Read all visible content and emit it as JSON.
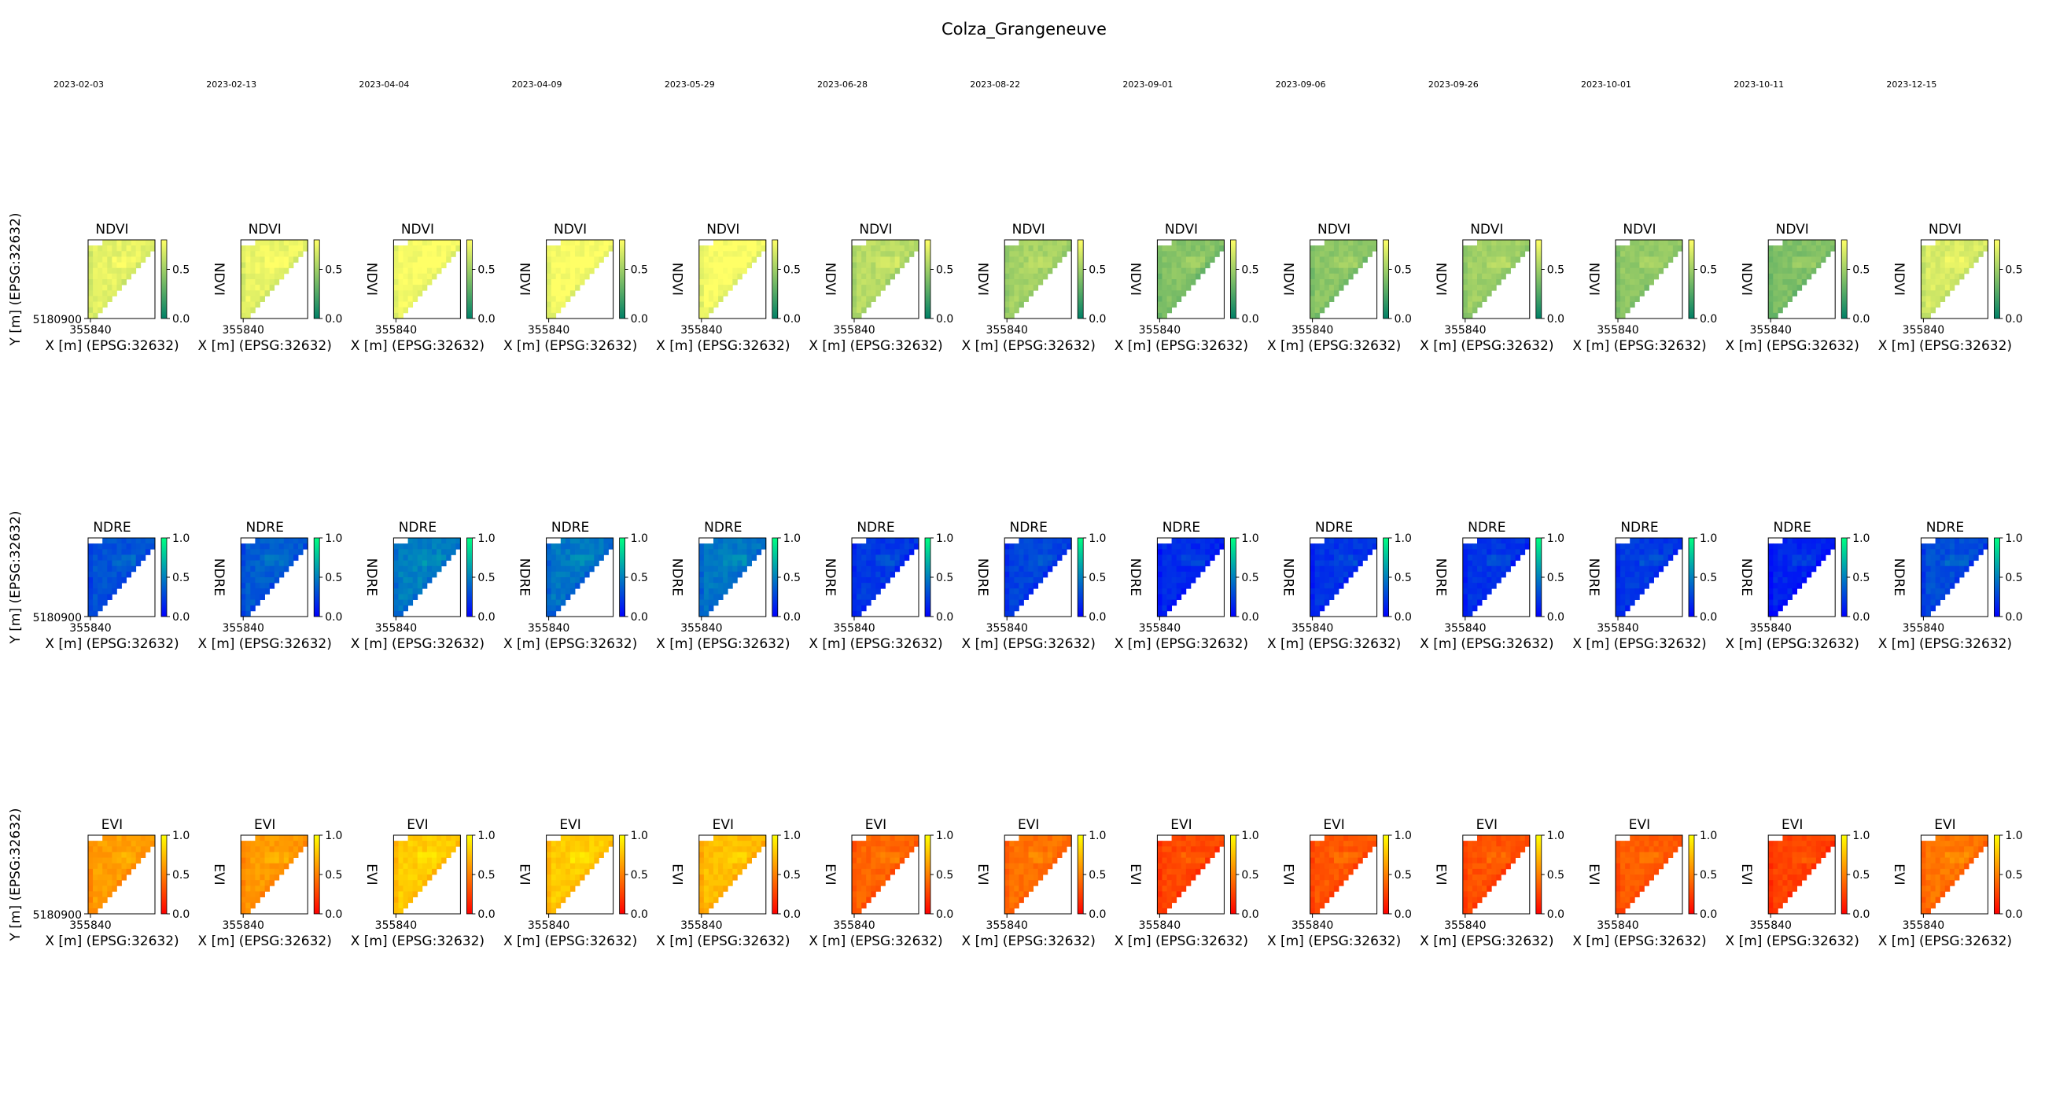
{
  "figure": {
    "title": "Colza_Grangeneuve",
    "dates": [
      "2023-02-03",
      "2023-02-13",
      "2023-04-04",
      "2023-04-09",
      "2023-05-29",
      "2023-06-28",
      "2023-08-22",
      "2023-09-01",
      "2023-09-06",
      "2023-09-26",
      "2023-10-01",
      "2023-10-11",
      "2023-12-15"
    ]
  },
  "chart_data": {
    "type": "heatmap",
    "title": "Colza_Grangeneuve",
    "xlabel": "X [m] (EPSG:32632)",
    "ylabel": "Y [m] (EPSG:32632)",
    "x_tick_label": "355840",
    "y_tick_label": "5180900",
    "columns": [
      "2023-02-03",
      "2023-02-13",
      "2023-04-04",
      "2023-04-09",
      "2023-05-29",
      "2023-06-28",
      "2023-08-22",
      "2023-09-01",
      "2023-09-06",
      "2023-09-26",
      "2023-10-01",
      "2023-10-11",
      "2023-12-15"
    ],
    "rows": [
      {
        "index": "NDVI",
        "colormap": "summer",
        "colormap_colors": [
          "#008066",
          "#ffff66"
        ],
        "clim": [
          0,
          0.8
        ],
        "colorbar_ticks": [
          "0.0",
          "0.5"
        ],
        "colorbar_label": "NDVI",
        "mean_values": [
          0.72,
          0.74,
          0.78,
          0.78,
          0.78,
          0.58,
          0.52,
          0.42,
          0.44,
          0.5,
          0.46,
          0.4,
          0.68
        ]
      },
      {
        "index": "NDRE",
        "colormap": "winter",
        "colormap_colors": [
          "#0000ff",
          "#00ff80"
        ],
        "clim": [
          0,
          1.0
        ],
        "colorbar_ticks": [
          "0.0",
          "0.5",
          "1.0"
        ],
        "colorbar_label": "NDRE",
        "mean_values": [
          0.32,
          0.36,
          0.5,
          0.46,
          0.46,
          0.22,
          0.26,
          0.16,
          0.2,
          0.2,
          0.22,
          0.14,
          0.3
        ]
      },
      {
        "index": "EVI",
        "colormap": "autumn",
        "colormap_colors": [
          "#ff0000",
          "#ffff00"
        ],
        "clim": [
          0,
          1.0
        ],
        "colorbar_ticks": [
          "0.0",
          "0.5",
          "1.0"
        ],
        "colorbar_label": "EVI",
        "mean_values": [
          0.62,
          0.6,
          0.8,
          0.8,
          0.74,
          0.4,
          0.44,
          0.28,
          0.34,
          0.32,
          0.36,
          0.26,
          0.46
        ]
      }
    ]
  }
}
